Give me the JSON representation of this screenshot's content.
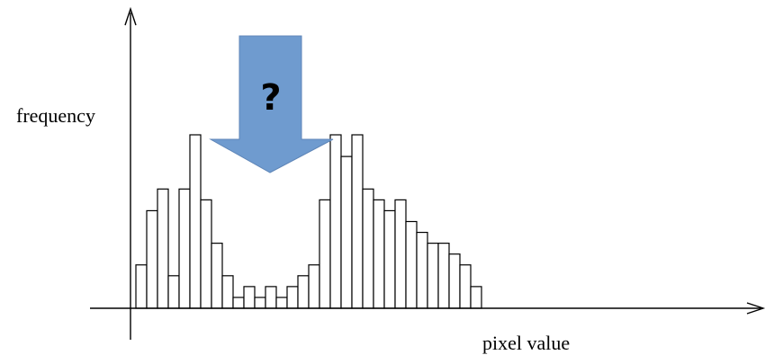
{
  "chart_data": {
    "type": "bar",
    "xlabel": "pixel value",
    "ylabel": "frequency",
    "grid": false,
    "legend": "none",
    "values": [
      4,
      9,
      11,
      3,
      11,
      16,
      10,
      6,
      3,
      1,
      2,
      1,
      2,
      1,
      2,
      3,
      4,
      10,
      16,
      14,
      16,
      11,
      10,
      9,
      10,
      8,
      7,
      6,
      6,
      5,
      4,
      2
    ],
    "ylim": [
      0,
      18
    ],
    "annotation": {
      "text": "?",
      "shape": "down-arrow",
      "color": "#6f9bcf"
    }
  }
}
